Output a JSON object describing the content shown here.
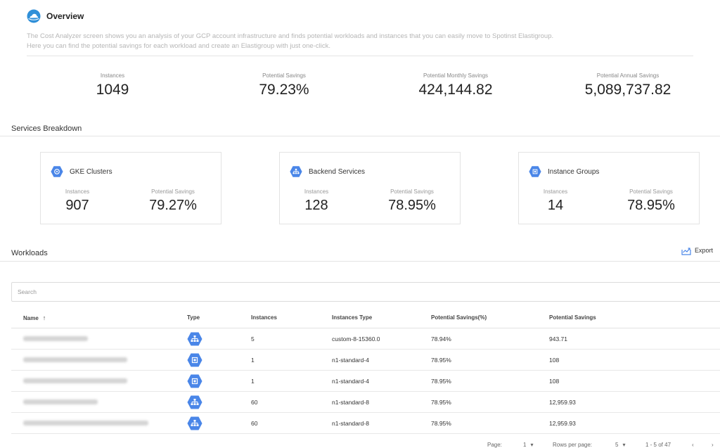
{
  "overview": {
    "title": "Overview",
    "description_line1": "The Cost Analyzer screen shows you an analysis of your GCP account infrastructure and finds potential workloads and instances that you can easily move to Spotinst Elastigroup.",
    "description_line2": "Here you can find the potential savings for each workload and create an Elastigroup with just one-click."
  },
  "stats": [
    {
      "label": "Instances",
      "value": "1049"
    },
    {
      "label": "Potential Savings",
      "value": "79.23%"
    },
    {
      "label": "Potential Monthly Savings",
      "value": "424,144.82"
    },
    {
      "label": "Potential Annual Savings",
      "value": "5,089,737.82"
    }
  ],
  "services": {
    "title": "Services Breakdown",
    "cards": [
      {
        "title": "GKE Clusters",
        "icon": "gke-icon",
        "instances_label": "Instances",
        "instances": "907",
        "savings_label": "Potential Savings",
        "savings": "79.27%"
      },
      {
        "title": "Backend Services",
        "icon": "backend-service-icon",
        "instances_label": "Instances",
        "instances": "128",
        "savings_label": "Potential Savings",
        "savings": "78.95%"
      },
      {
        "title": "Instance Groups",
        "icon": "instance-group-icon",
        "instances_label": "Instances",
        "instances": "14",
        "savings_label": "Potential Savings",
        "savings": "78.95%"
      }
    ]
  },
  "workloads": {
    "title": "Workloads",
    "export_label": "Export",
    "search_placeholder": "Search",
    "columns": {
      "name": "Name",
      "type": "Type",
      "instances": "Instances",
      "instances_type": "Instances Type",
      "savings_pct": "Potential Savings(%)",
      "savings": "Potential Savings"
    },
    "rows": [
      {
        "type": "backend-service-icon",
        "instances": "5",
        "instances_type": "custom-8-15360.0",
        "savings_pct": "78.94%",
        "savings": "943.71"
      },
      {
        "type": "instance-group-icon",
        "instances": "1",
        "instances_type": "n1-standard-4",
        "savings_pct": "78.95%",
        "savings": "108"
      },
      {
        "type": "instance-group-icon",
        "instances": "1",
        "instances_type": "n1-standard-4",
        "savings_pct": "78.95%",
        "savings": "108"
      },
      {
        "type": "backend-service-icon",
        "instances": "60",
        "instances_type": "n1-standard-8",
        "savings_pct": "78.95%",
        "savings": "12,959.93"
      },
      {
        "type": "backend-service-icon",
        "instances": "60",
        "instances_type": "n1-standard-8",
        "savings_pct": "78.95%",
        "savings": "12,959.93"
      }
    ]
  },
  "pagination": {
    "page_label": "Page:",
    "page_value": "1",
    "rows_label": "Rows per page:",
    "rows_value": "5",
    "range": "1 - 5 of 47"
  },
  "colors": {
    "gcp_blue": "#4a86e8",
    "text": "#333333",
    "muted": "#b6b6b6"
  }
}
